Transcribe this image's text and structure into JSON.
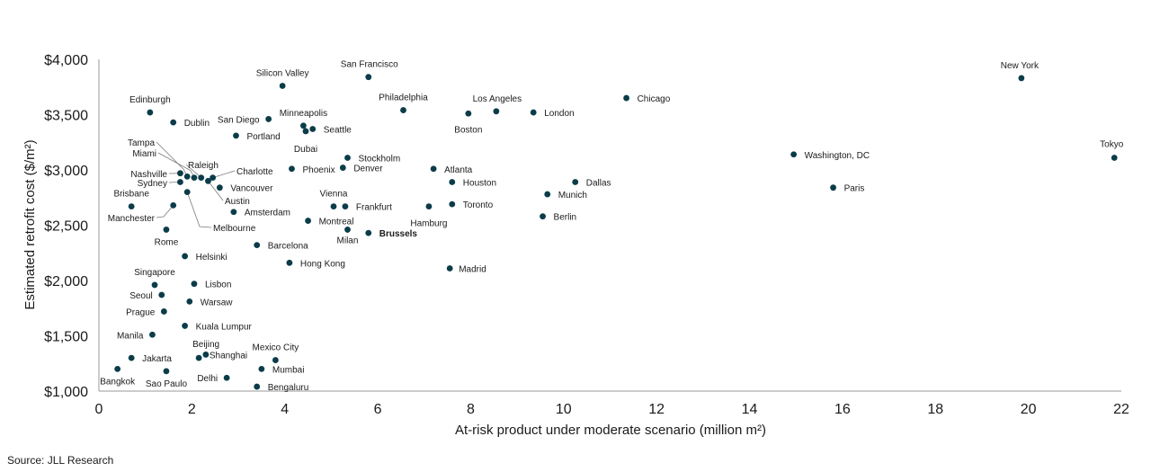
{
  "chart_data": {
    "type": "scatter",
    "title": "",
    "xlabel": "At-risk product under moderate scenario (million m²)",
    "ylabel": "Estimated retrofit cost ($/m²)",
    "xlim": [
      0,
      22
    ],
    "ylim": [
      1000,
      4000
    ],
    "x_ticks": [
      "0",
      "2",
      "4",
      "6",
      "8",
      "10",
      "12",
      "14",
      "16",
      "18",
      "20",
      "22"
    ],
    "y_ticks": [
      "$1,000",
      "$1,500",
      "$2,000",
      "$2,500",
      "$3,000",
      "$3,500",
      "$4,000"
    ],
    "grid": false,
    "point_color": "#0b3c49",
    "highlight_color": "#c0232c",
    "points": [
      {
        "label": "New York",
        "x": 19.85,
        "y": 3830
      },
      {
        "label": "Tokyo",
        "x": 21.85,
        "y": 3110
      },
      {
        "label": "Washington, DC",
        "x": 14.95,
        "y": 3140
      },
      {
        "label": "Paris",
        "x": 15.8,
        "y": 2840
      },
      {
        "label": "Chicago",
        "x": 11.35,
        "y": 3650
      },
      {
        "label": "Dallas",
        "x": 10.25,
        "y": 2890
      },
      {
        "label": "Munich",
        "x": 9.65,
        "y": 2780
      },
      {
        "label": "Berlin",
        "x": 9.55,
        "y": 2580
      },
      {
        "label": "London",
        "x": 9.35,
        "y": 3520
      },
      {
        "label": "Los Angeles",
        "x": 8.55,
        "y": 3530
      },
      {
        "label": "Boston",
        "x": 7.95,
        "y": 3510
      },
      {
        "label": "Philadelphia",
        "x": 6.55,
        "y": 3540
      },
      {
        "label": "Atlanta",
        "x": 7.2,
        "y": 3010
      },
      {
        "label": "Houston",
        "x": 7.6,
        "y": 2890
      },
      {
        "label": "Toronto",
        "x": 7.6,
        "y": 2690
      },
      {
        "label": "Hamburg",
        "x": 7.1,
        "y": 2670
      },
      {
        "label": "Madrid",
        "x": 7.55,
        "y": 2110
      },
      {
        "label": "San Francisco",
        "x": 5.8,
        "y": 3840
      },
      {
        "label": "Silicon Valley",
        "x": 3.95,
        "y": 3760
      },
      {
        "label": "Minneapolis",
        "x": 4.4,
        "y": 3400
      },
      {
        "label": "Seattle",
        "x": 4.6,
        "y": 3370
      },
      {
        "label": "Dubai",
        "x": 4.45,
        "y": 3350
      },
      {
        "label": "San Diego",
        "x": 3.65,
        "y": 3460
      },
      {
        "label": "Portland",
        "x": 2.95,
        "y": 3310
      },
      {
        "label": "Stockholm",
        "x": 5.35,
        "y": 3110
      },
      {
        "label": "Denver",
        "x": 5.25,
        "y": 3020
      },
      {
        "label": "Phoenix",
        "x": 4.15,
        "y": 3010
      },
      {
        "label": "Vienna",
        "x": 5.05,
        "y": 2670
      },
      {
        "label": "Frankfurt",
        "x": 5.3,
        "y": 2670
      },
      {
        "label": "Montreal",
        "x": 4.5,
        "y": 2540
      },
      {
        "label": "Milan",
        "x": 5.35,
        "y": 2460
      },
      {
        "label": "Brussels",
        "x": 5.8,
        "y": 2430,
        "highlight": true
      },
      {
        "label": "Barcelona",
        "x": 3.4,
        "y": 2320
      },
      {
        "label": "Hong Kong",
        "x": 4.1,
        "y": 2160
      },
      {
        "label": "Amsterdam",
        "x": 2.9,
        "y": 2620
      },
      {
        "label": "Vancouver",
        "x": 2.6,
        "y": 2840
      },
      {
        "label": "Charlotte",
        "x": 2.45,
        "y": 2930
      },
      {
        "label": "Austin",
        "x": 2.35,
        "y": 2900
      },
      {
        "label": "Raleigh",
        "x": 2.2,
        "y": 2930
      },
      {
        "label": "Miami",
        "x": 2.05,
        "y": 2930
      },
      {
        "label": "Tampa",
        "x": 1.9,
        "y": 2940
      },
      {
        "label": "Nashville",
        "x": 1.75,
        "y": 2970
      },
      {
        "label": "Sydney",
        "x": 1.75,
        "y": 2890
      },
      {
        "label": "Melbourne",
        "x": 1.9,
        "y": 2800
      },
      {
        "label": "Edinburgh",
        "x": 1.1,
        "y": 3520
      },
      {
        "label": "Dublin",
        "x": 1.6,
        "y": 3430
      },
      {
        "label": "Brisbane",
        "x": 0.7,
        "y": 2670
      },
      {
        "label": "Manchester",
        "x": 1.6,
        "y": 2680
      },
      {
        "label": "Rome",
        "x": 1.45,
        "y": 2460
      },
      {
        "label": "Helsinki",
        "x": 1.85,
        "y": 2220
      },
      {
        "label": "Singapore",
        "x": 1.2,
        "y": 1960
      },
      {
        "label": "Lisbon",
        "x": 2.05,
        "y": 1970
      },
      {
        "label": "Seoul",
        "x": 1.35,
        "y": 1870
      },
      {
        "label": "Warsaw",
        "x": 1.95,
        "y": 1810
      },
      {
        "label": "Prague",
        "x": 1.4,
        "y": 1720
      },
      {
        "label": "Kuala Lumpur",
        "x": 1.85,
        "y": 1590
      },
      {
        "label": "Manila",
        "x": 1.15,
        "y": 1510
      },
      {
        "label": "Beijing",
        "x": 2.15,
        "y": 1300
      },
      {
        "label": "Shanghai",
        "x": 2.3,
        "y": 1330
      },
      {
        "label": "Mexico City",
        "x": 3.8,
        "y": 1280
      },
      {
        "label": "Mumbai",
        "x": 3.5,
        "y": 1200
      },
      {
        "label": "Jakarta",
        "x": 0.7,
        "y": 1300
      },
      {
        "label": "Bangkok",
        "x": 0.4,
        "y": 1200
      },
      {
        "label": "Sao Paulo",
        "x": 1.45,
        "y": 1180
      },
      {
        "label": "Delhi",
        "x": 2.75,
        "y": 1120
      },
      {
        "label": "Bengaluru",
        "x": 3.4,
        "y": 1040
      }
    ]
  },
  "source": "Source: JLL Research"
}
